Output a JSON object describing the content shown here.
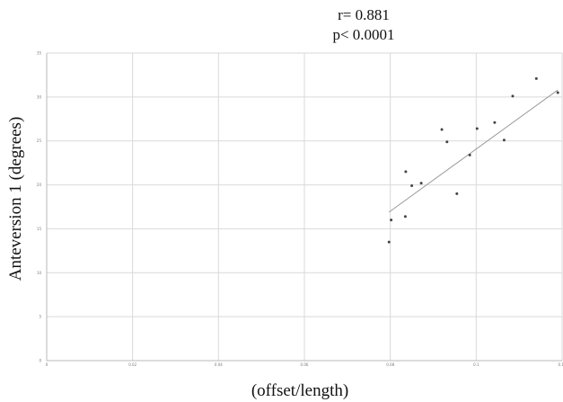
{
  "annotations": {
    "r_text": "r= 0.881",
    "p_text": "p< 0.0001"
  },
  "chart_data": {
    "type": "scatter",
    "title": "",
    "xlabel": "(offset/length)",
    "ylabel": "Anteversion 1 (degrees)",
    "xlim": [
      0,
      0.12
    ],
    "ylim": [
      0,
      35
    ],
    "x_ticks": [
      "0",
      "0.02",
      "0.04",
      "0.06",
      "0.08",
      "0.1",
      "0.12"
    ],
    "y_ticks": [
      "0",
      "5",
      "10",
      "15",
      "20",
      "25",
      "30",
      "35"
    ],
    "grid": true,
    "trendline": true,
    "points": [
      {
        "x": 0.0797,
        "y": 13.5
      },
      {
        "x": 0.0802,
        "y": 16.0
      },
      {
        "x": 0.0835,
        "y": 16.4
      },
      {
        "x": 0.0836,
        "y": 21.5
      },
      {
        "x": 0.085,
        "y": 19.9
      },
      {
        "x": 0.0872,
        "y": 20.2
      },
      {
        "x": 0.092,
        "y": 26.3
      },
      {
        "x": 0.0932,
        "y": 24.9
      },
      {
        "x": 0.0955,
        "y": 19.0
      },
      {
        "x": 0.0985,
        "y": 23.4
      },
      {
        "x": 0.1002,
        "y": 26.4
      },
      {
        "x": 0.1043,
        "y": 27.1
      },
      {
        "x": 0.1065,
        "y": 25.1
      },
      {
        "x": 0.1085,
        "y": 30.1
      },
      {
        "x": 0.114,
        "y": 32.1
      },
      {
        "x": 0.119,
        "y": 30.5
      }
    ],
    "fit_line": {
      "x": [
        0.0797,
        0.119
      ],
      "y": [
        16.9,
        30.8
      ]
    }
  },
  "colors": {
    "grid": "#d9d9d9",
    "axis": "#b8b8b8",
    "point": "#444444",
    "trendline": "#9a9a9a"
  }
}
